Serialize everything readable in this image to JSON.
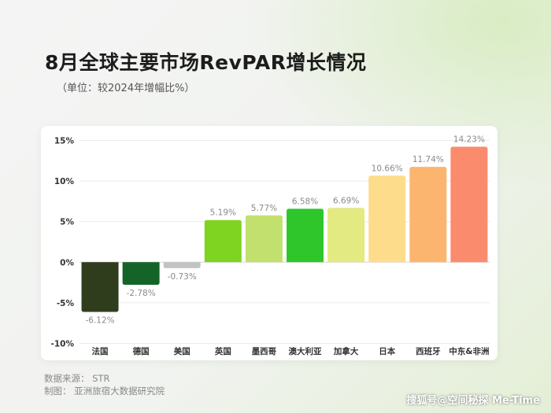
{
  "title": "8月全球主要市场RevPAR增长情况",
  "subtitle": "（单位：较2024年增幅比%）",
  "footer": {
    "source": "数据来源：  STR",
    "maker": "制图：  亚洲旅宿大数据研究院"
  },
  "signature": "搜狐号@空间秘探 Me-Time",
  "chart_data": {
    "type": "bar",
    "categories": [
      "法国",
      "德国",
      "美国",
      "英国",
      "墨西哥",
      "澳大利亚",
      "加拿大",
      "日本",
      "西班牙",
      "中东&非洲"
    ],
    "values": [
      -6.12,
      -2.78,
      -0.73,
      5.19,
      5.77,
      6.58,
      6.69,
      10.66,
      11.74,
      14.23
    ],
    "value_labels": [
      "-6.12%",
      "-2.78%",
      "-0.73%",
      "5.19%",
      "5.77%",
      "6.58%",
      "6.69%",
      "10.66%",
      "11.74%",
      "14.23%"
    ],
    "colors": [
      "#2f3d1c",
      "#146428",
      "#c3c3c3",
      "#7fd321",
      "#c2e06d",
      "#2fc62c",
      "#e3ea82",
      "#fddc8b",
      "#fcb56e",
      "#fa8b6d"
    ],
    "yticks": [
      15,
      10,
      5,
      0,
      -5,
      -10
    ],
    "ytick_labels": [
      "15%",
      "10%",
      "5%",
      "0%",
      "-5%",
      "-10%"
    ],
    "ylim": [
      -10,
      15
    ],
    "grid": true
  }
}
